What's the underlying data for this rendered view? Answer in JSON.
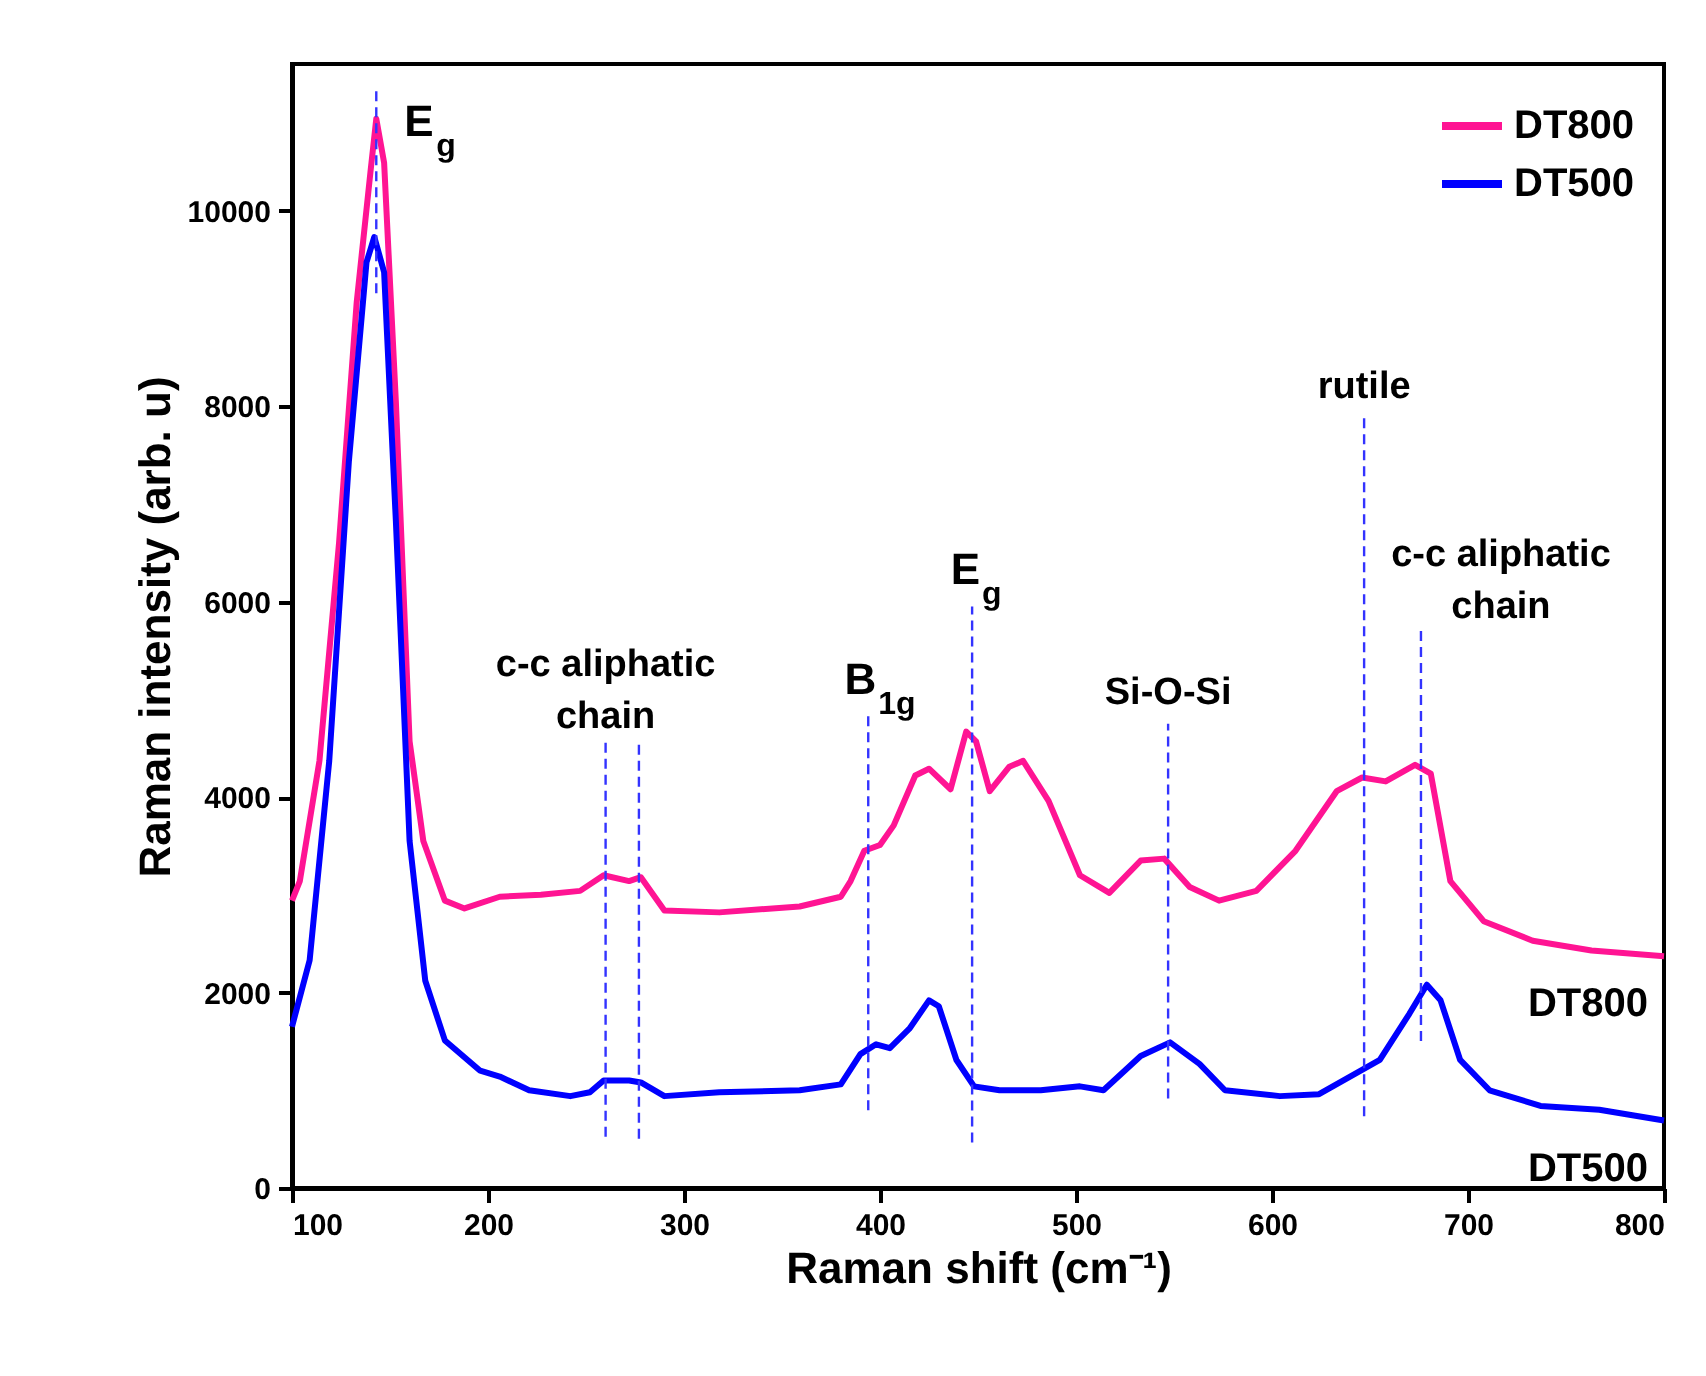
{
  "chart_data": {
    "type": "line",
    "xlabel": "Raman shift (cm⁻¹)",
    "ylabel": "Raman intensity (arb. u)",
    "xlim": [
      100,
      800
    ],
    "xticks": [
      100,
      200,
      300,
      400,
      500,
      600,
      700,
      800
    ],
    "ylim": [
      0,
      11500
    ],
    "yticks": [
      0,
      2000,
      4000,
      6000,
      8000,
      10000
    ],
    "grid": false,
    "legend": "top right",
    "marker": "none",
    "line_style": "solid",
    "series": [
      {
        "name": "DT800",
        "color": "#ff1493",
        "x": [
          100,
          104,
          114,
          124,
          133,
          140,
          143,
          147,
          153,
          160,
          167,
          178,
          188,
          206,
          227,
          247,
          259,
          272,
          278,
          290,
          318,
          359,
          380,
          385,
          392,
          400,
          407,
          418,
          425,
          436,
          444,
          449,
          456,
          466,
          473,
          486,
          502,
          517,
          533,
          545,
          558,
          573,
          592,
          612,
          633,
          646,
          658,
          673,
          681,
          691,
          708,
          733,
          763,
          800
        ],
        "values": [
          2940,
          3140,
          4370,
          6600,
          9060,
          10390,
          10940,
          10490,
          8040,
          4570,
          3550,
          2940,
          2860,
          2980,
          3000,
          3040,
          3200,
          3140,
          3180,
          2840,
          2820,
          2880,
          2980,
          3140,
          3450,
          3510,
          3710,
          4220,
          4290,
          4080,
          4670,
          4570,
          4060,
          4310,
          4370,
          3960,
          3200,
          3020,
          3350,
          3370,
          3080,
          2940,
          3040,
          3450,
          4060,
          4200,
          4160,
          4330,
          4240,
          3140,
          2730,
          2530,
          2430,
          2370
        ]
      },
      {
        "name": "DT500",
        "color": "#0000ff",
        "x": [
          100,
          109,
          119,
          129,
          138,
          142,
          147,
          153,
          160,
          168,
          178,
          196,
          206,
          221,
          242,
          252,
          259,
          272,
          278,
          290,
          318,
          359,
          380,
          390,
          398,
          405,
          415,
          425,
          430,
          439,
          448,
          461,
          482,
          502,
          514,
          533,
          548,
          563,
          576,
          604,
          624,
          655,
          670,
          679,
          686,
          696,
          711,
          737,
          767,
          800
        ],
        "values": [
          1650,
          2330,
          4370,
          7430,
          9470,
          9730,
          9370,
          6820,
          3550,
          2120,
          1510,
          1200,
          1140,
          1000,
          940,
          980,
          1100,
          1100,
          1080,
          940,
          980,
          1000,
          1060,
          1370,
          1470,
          1430,
          1630,
          1920,
          1860,
          1310,
          1040,
          1000,
          1000,
          1040,
          1000,
          1350,
          1490,
          1270,
          1000,
          940,
          960,
          1310,
          1780,
          2080,
          1920,
          1310,
          1000,
          840,
          800,
          690
        ]
      }
    ],
    "ref_lines": [
      {
        "axis": "x",
        "value": 143,
        "label": "E$_{g}$",
        "color": "#3333ff",
        "line_style": "dashed"
      },
      {
        "axis": "x",
        "value": 260,
        "label": "c-c aliphatic\nchain",
        "color": "#3333ff",
        "line_style": "dashed"
      },
      {
        "axis": "x",
        "value": 277,
        "label": null,
        "color": "#3333ff",
        "line_style": "dashed"
      },
      {
        "axis": "x",
        "value": 394,
        "label": "B$_{1g}$",
        "color": "#3333ff",
        "line_style": "dashed"
      },
      {
        "axis": "x",
        "value": 447,
        "label": "E$_{g}$",
        "color": "#3333ff",
        "line_style": "dashed"
      },
      {
        "axis": "x",
        "value": 547,
        "label": "Si-O-Si",
        "color": "#3333ff",
        "line_style": "dashed"
      },
      {
        "axis": "x",
        "value": 647,
        "label": "rutile",
        "color": "#3333ff",
        "line_style": "dashed"
      },
      {
        "axis": "x",
        "value": 676,
        "label": "c-c aliphatic\nchain",
        "color": "#3333ff",
        "line_style": "dashed"
      }
    ],
    "annotations": [
      "DT800",
      "DT500"
    ]
  }
}
